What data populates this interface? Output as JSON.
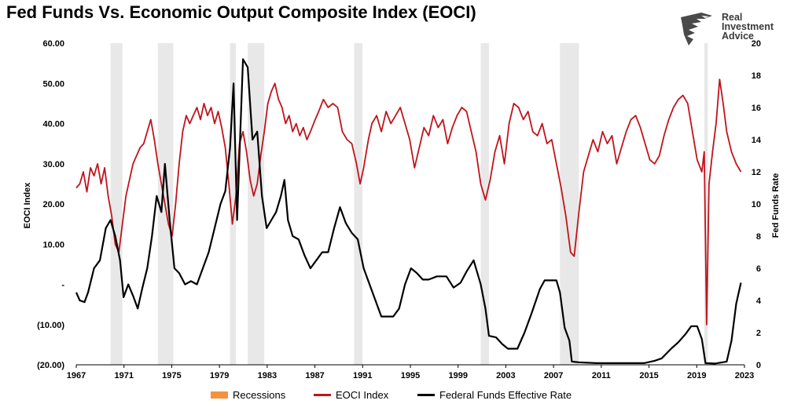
{
  "title": "Fed Funds Vs. Economic Output Composite Index (EOCI)",
  "logo": {
    "line1": "Real",
    "line2": "Investment",
    "line3": "Advice"
  },
  "colors": {
    "eoci": "#c0141c",
    "fedfunds": "#000000",
    "recession_shade": "#e8e8e8",
    "recession_legend": "#f5923e"
  },
  "chart_data": {
    "type": "line",
    "title": "Fed Funds Vs. Economic Output Composite Index (EOCI)",
    "ylabel": "EOCI Index",
    "y2label": "Fed Funds Rate",
    "xlabel": "",
    "xlim": [
      1967,
      2023.5
    ],
    "ylim": [
      -20,
      60
    ],
    "y2lim": [
      0,
      20
    ],
    "x_tick_labels": [
      "1967",
      "1971",
      "1975",
      "1979",
      "1983",
      "1987",
      "1991",
      "1995",
      "1999",
      "2003",
      "2007",
      "2011",
      "2015",
      "2019",
      "2023"
    ],
    "y_tick_labels": [
      "(20.00)",
      "(10.00)",
      "-",
      "10.00",
      "20.00",
      "30.00",
      "40.00",
      "50.00",
      "60.00"
    ],
    "y2_tick_labels": [
      "0",
      "2",
      "4",
      "6",
      "8",
      "10",
      "12",
      "14",
      "16",
      "18",
      "20"
    ],
    "legend": {
      "position": "bottom",
      "items": [
        "Recessions",
        "EOCI Index",
        "Federal Funds Effective Rate"
      ]
    },
    "recessions": [
      [
        1969.9,
        1970.9
      ],
      [
        1973.9,
        1975.2
      ],
      [
        1980.0,
        1980.5
      ],
      [
        1981.5,
        1982.9
      ],
      [
        1990.5,
        1991.2
      ],
      [
        2001.2,
        2001.9
      ],
      [
        2007.9,
        2009.5
      ],
      [
        2020.1,
        2020.4
      ]
    ],
    "series": [
      {
        "name": "EOCI Index",
        "axis": "left",
        "points": [
          [
            1967,
            24
          ],
          [
            1967.3,
            25
          ],
          [
            1967.6,
            28
          ],
          [
            1967.9,
            23
          ],
          [
            1968.2,
            29
          ],
          [
            1968.5,
            27
          ],
          [
            1968.8,
            30
          ],
          [
            1969.1,
            25
          ],
          [
            1969.4,
            29
          ],
          [
            1969.7,
            22
          ],
          [
            1970.0,
            17
          ],
          [
            1970.3,
            10
          ],
          [
            1970.6,
            8
          ],
          [
            1970.9,
            15
          ],
          [
            1971.2,
            22
          ],
          [
            1971.5,
            26
          ],
          [
            1971.8,
            30
          ],
          [
            1972.1,
            32
          ],
          [
            1972.4,
            34
          ],
          [
            1972.7,
            35
          ],
          [
            1973.0,
            38
          ],
          [
            1973.3,
            41
          ],
          [
            1973.6,
            36
          ],
          [
            1973.9,
            30
          ],
          [
            1974.2,
            25
          ],
          [
            1974.5,
            20
          ],
          [
            1974.8,
            15
          ],
          [
            1975.1,
            12
          ],
          [
            1975.4,
            20
          ],
          [
            1975.7,
            30
          ],
          [
            1976.0,
            38
          ],
          [
            1976.3,
            42
          ],
          [
            1976.6,
            40
          ],
          [
            1976.9,
            42
          ],
          [
            1977.2,
            44
          ],
          [
            1977.5,
            41
          ],
          [
            1977.8,
            45
          ],
          [
            1978.1,
            42
          ],
          [
            1978.4,
            44
          ],
          [
            1978.7,
            40
          ],
          [
            1979.0,
            43
          ],
          [
            1979.3,
            39
          ],
          [
            1979.6,
            34
          ],
          [
            1979.9,
            25
          ],
          [
            1980.2,
            15
          ],
          [
            1980.5,
            22
          ],
          [
            1980.8,
            35
          ],
          [
            1981.1,
            38
          ],
          [
            1981.4,
            33
          ],
          [
            1981.7,
            26
          ],
          [
            1982.0,
            22
          ],
          [
            1982.3,
            25
          ],
          [
            1982.6,
            32
          ],
          [
            1982.9,
            38
          ],
          [
            1983.2,
            45
          ],
          [
            1983.5,
            48
          ],
          [
            1983.8,
            50
          ],
          [
            1984.1,
            46
          ],
          [
            1984.4,
            44
          ],
          [
            1984.7,
            40
          ],
          [
            1985.0,
            42
          ],
          [
            1985.3,
            38
          ],
          [
            1985.6,
            40
          ],
          [
            1985.9,
            37
          ],
          [
            1986.2,
            39
          ],
          [
            1986.5,
            36
          ],
          [
            1986.8,
            38
          ],
          [
            1987.2,
            41
          ],
          [
            1987.5,
            43
          ],
          [
            1987.9,
            46
          ],
          [
            1988.3,
            44
          ],
          [
            1988.7,
            45
          ],
          [
            1989.1,
            44
          ],
          [
            1989.5,
            38
          ],
          [
            1989.9,
            36
          ],
          [
            1990.3,
            35
          ],
          [
            1990.7,
            30
          ],
          [
            1991.0,
            25
          ],
          [
            1991.3,
            29
          ],
          [
            1991.7,
            36
          ],
          [
            1992.0,
            40
          ],
          [
            1992.4,
            42
          ],
          [
            1992.8,
            38
          ],
          [
            1993.2,
            43
          ],
          [
            1993.6,
            40
          ],
          [
            1994.0,
            42
          ],
          [
            1994.4,
            44
          ],
          [
            1994.8,
            40
          ],
          [
            1995.2,
            36
          ],
          [
            1995.6,
            29
          ],
          [
            1996.0,
            34
          ],
          [
            1996.4,
            39
          ],
          [
            1996.8,
            37
          ],
          [
            1997.2,
            42
          ],
          [
            1997.6,
            39
          ],
          [
            1998.0,
            41
          ],
          [
            1998.4,
            35
          ],
          [
            1998.8,
            39
          ],
          [
            1999.2,
            42
          ],
          [
            1999.6,
            44
          ],
          [
            2000.0,
            43
          ],
          [
            2000.4,
            38
          ],
          [
            2000.8,
            33
          ],
          [
            2001.2,
            25
          ],
          [
            2001.6,
            21
          ],
          [
            2002.0,
            26
          ],
          [
            2002.4,
            33
          ],
          [
            2002.8,
            37
          ],
          [
            2003.2,
            30
          ],
          [
            2003.6,
            40
          ],
          [
            2004.0,
            45
          ],
          [
            2004.4,
            44
          ],
          [
            2004.8,
            41
          ],
          [
            2005.2,
            43
          ],
          [
            2005.6,
            38
          ],
          [
            2006.0,
            37
          ],
          [
            2006.4,
            40
          ],
          [
            2006.8,
            35
          ],
          [
            2007.2,
            36
          ],
          [
            2007.6,
            30
          ],
          [
            2008.0,
            24
          ],
          [
            2008.4,
            17
          ],
          [
            2008.8,
            8
          ],
          [
            2009.1,
            7
          ],
          [
            2009.5,
            18
          ],
          [
            2009.9,
            28
          ],
          [
            2010.3,
            32
          ],
          [
            2010.7,
            36
          ],
          [
            2011.1,
            33
          ],
          [
            2011.5,
            38
          ],
          [
            2011.9,
            35
          ],
          [
            2012.3,
            37
          ],
          [
            2012.7,
            30
          ],
          [
            2013.1,
            34
          ],
          [
            2013.5,
            38
          ],
          [
            2013.9,
            41
          ],
          [
            2014.3,
            42
          ],
          [
            2014.7,
            39
          ],
          [
            2015.1,
            35
          ],
          [
            2015.5,
            31
          ],
          [
            2015.9,
            30
          ],
          [
            2016.3,
            32
          ],
          [
            2016.7,
            37
          ],
          [
            2017.1,
            41
          ],
          [
            2017.5,
            44
          ],
          [
            2017.9,
            46
          ],
          [
            2018.3,
            47
          ],
          [
            2018.7,
            45
          ],
          [
            2019.1,
            38
          ],
          [
            2019.5,
            31
          ],
          [
            2019.9,
            28
          ],
          [
            2020.1,
            33
          ],
          [
            2020.3,
            -10
          ],
          [
            2020.5,
            25
          ],
          [
            2020.8,
            33
          ],
          [
            2021.1,
            40
          ],
          [
            2021.4,
            51
          ],
          [
            2021.7,
            45
          ],
          [
            2022.0,
            38
          ],
          [
            2022.4,
            33
          ],
          [
            2022.8,
            30
          ],
          [
            2023.2,
            28
          ]
        ]
      },
      {
        "name": "Federal Funds Effective Rate",
        "axis": "right",
        "points": [
          [
            1967,
            4.5
          ],
          [
            1967.3,
            4.0
          ],
          [
            1967.7,
            3.9
          ],
          [
            1968.0,
            4.5
          ],
          [
            1968.5,
            6.0
          ],
          [
            1969.0,
            6.5
          ],
          [
            1969.5,
            8.5
          ],
          [
            1969.9,
            9.0
          ],
          [
            1970.3,
            8.0
          ],
          [
            1970.7,
            6.5
          ],
          [
            1971.0,
            4.2
          ],
          [
            1971.4,
            5.0
          ],
          [
            1971.8,
            4.3
          ],
          [
            1972.2,
            3.5
          ],
          [
            1972.6,
            4.8
          ],
          [
            1973.0,
            6.0
          ],
          [
            1973.4,
            8.0
          ],
          [
            1973.8,
            10.5
          ],
          [
            1974.2,
            9.5
          ],
          [
            1974.5,
            12.5
          ],
          [
            1974.9,
            9.0
          ],
          [
            1975.3,
            6.0
          ],
          [
            1975.7,
            5.7
          ],
          [
            1976.2,
            5.0
          ],
          [
            1976.7,
            5.2
          ],
          [
            1977.2,
            5.0
          ],
          [
            1977.7,
            6.0
          ],
          [
            1978.2,
            7.0
          ],
          [
            1978.7,
            8.5
          ],
          [
            1979.2,
            10.0
          ],
          [
            1979.6,
            10.8
          ],
          [
            1980.0,
            13.5
          ],
          [
            1980.3,
            17.5
          ],
          [
            1980.6,
            9.0
          ],
          [
            1980.9,
            15.0
          ],
          [
            1981.1,
            19.0
          ],
          [
            1981.5,
            18.5
          ],
          [
            1981.9,
            14.0
          ],
          [
            1982.3,
            14.5
          ],
          [
            1982.7,
            10.5
          ],
          [
            1983.1,
            8.5
          ],
          [
            1983.5,
            9.0
          ],
          [
            1983.9,
            9.5
          ],
          [
            1984.3,
            10.5
          ],
          [
            1984.6,
            11.5
          ],
          [
            1984.9,
            9.0
          ],
          [
            1985.3,
            8.0
          ],
          [
            1985.8,
            7.8
          ],
          [
            1986.3,
            6.8
          ],
          [
            1986.8,
            6.0
          ],
          [
            1987.3,
            6.5
          ],
          [
            1987.8,
            7.0
          ],
          [
            1988.3,
            7.0
          ],
          [
            1988.8,
            8.5
          ],
          [
            1989.3,
            9.8
          ],
          [
            1989.8,
            8.8
          ],
          [
            1990.3,
            8.2
          ],
          [
            1990.8,
            7.8
          ],
          [
            1991.3,
            6.0
          ],
          [
            1991.8,
            5.0
          ],
          [
            1992.3,
            4.0
          ],
          [
            1992.8,
            3.0
          ],
          [
            1993.3,
            3.0
          ],
          [
            1993.8,
            3.0
          ],
          [
            1994.3,
            3.5
          ],
          [
            1994.8,
            5.0
          ],
          [
            1995.3,
            6.0
          ],
          [
            1995.8,
            5.7
          ],
          [
            1996.3,
            5.3
          ],
          [
            1996.8,
            5.3
          ],
          [
            1997.5,
            5.5
          ],
          [
            1998.3,
            5.5
          ],
          [
            1998.9,
            4.8
          ],
          [
            1999.5,
            5.1
          ],
          [
            2000.0,
            5.8
          ],
          [
            2000.6,
            6.5
          ],
          [
            2001.2,
            5.0
          ],
          [
            2001.6,
            3.5
          ],
          [
            2001.9,
            1.8
          ],
          [
            2002.5,
            1.7
          ],
          [
            2003.0,
            1.3
          ],
          [
            2003.5,
            1.0
          ],
          [
            2004.3,
            1.0
          ],
          [
            2004.9,
            2.0
          ],
          [
            2005.5,
            3.2
          ],
          [
            2006.2,
            4.7
          ],
          [
            2006.6,
            5.25
          ],
          [
            2007.6,
            5.25
          ],
          [
            2007.9,
            4.5
          ],
          [
            2008.3,
            2.3
          ],
          [
            2008.7,
            1.5
          ],
          [
            2008.9,
            0.2
          ],
          [
            2009.5,
            0.15
          ],
          [
            2011.0,
            0.1
          ],
          [
            2013.0,
            0.1
          ],
          [
            2015.0,
            0.1
          ],
          [
            2015.9,
            0.25
          ],
          [
            2016.5,
            0.4
          ],
          [
            2017.3,
            1.0
          ],
          [
            2017.9,
            1.4
          ],
          [
            2018.5,
            1.9
          ],
          [
            2019.0,
            2.4
          ],
          [
            2019.5,
            2.4
          ],
          [
            2019.9,
            1.6
          ],
          [
            2020.2,
            0.1
          ],
          [
            2021.0,
            0.08
          ],
          [
            2022.0,
            0.2
          ],
          [
            2022.4,
            1.5
          ],
          [
            2022.8,
            3.8
          ],
          [
            2023.2,
            5.1
          ]
        ]
      }
    ]
  }
}
